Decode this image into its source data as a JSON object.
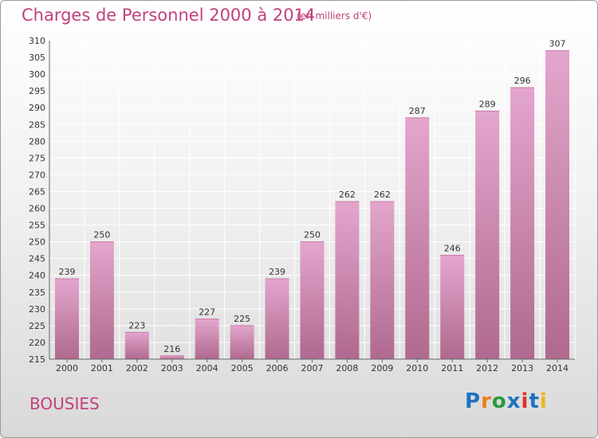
{
  "title": "Charges de Personnel 2000 à 2014",
  "subtitle": "(en milliers d'€)",
  "commune": "BOUSIES",
  "logo": {
    "text": "Proxiti",
    "letters": [
      "P",
      "r",
      "o",
      "x",
      "i",
      "t",
      "i"
    ],
    "colors": [
      "#1e73be",
      "#f07d18",
      "#2a9b3c",
      "#1e73be",
      "#e0302a",
      "#1e73be",
      "#f0b418"
    ]
  },
  "colors": {
    "bar_top": "#e3a6cd",
    "bar_bottom": "#b0698f",
    "text": "#c2407e",
    "grid": "#ffffff"
  },
  "chart_data": {
    "type": "bar",
    "categories": [
      "2000",
      "2001",
      "2002",
      "2003",
      "2004",
      "2005",
      "2006",
      "2007",
      "2008",
      "2009",
      "2010",
      "2011",
      "2012",
      "2013",
      "2014"
    ],
    "values": [
      239,
      250,
      223,
      216,
      227,
      225,
      239,
      250,
      262,
      262,
      287,
      246,
      289,
      296,
      307
    ],
    "ylim": [
      215,
      310
    ],
    "yticks": [
      215,
      220,
      225,
      230,
      235,
      240,
      245,
      250,
      255,
      260,
      265,
      270,
      275,
      280,
      285,
      290,
      295,
      300,
      305,
      310
    ],
    "grid": true,
    "data_labels": true
  }
}
